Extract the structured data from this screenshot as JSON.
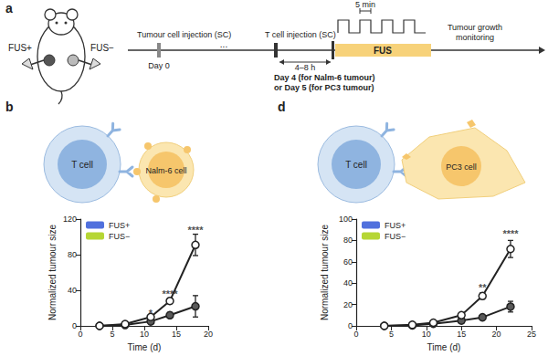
{
  "figure": {
    "panel_labels": [
      "a",
      "b",
      "d"
    ],
    "schematic": {
      "mouse_labels": [
        "FUS+",
        "FUS−"
      ],
      "tumour_injection": {
        "label": "Tumour cell injection (SC)",
        "day": "Day 0"
      },
      "ellipsis": "...",
      "t_cell_injection": {
        "label": "T cell injection (SC)",
        "day": [
          "Day 4 (for Nalm-6 tumour)",
          "or Day 5 (for PC3 tumour)"
        ]
      },
      "delay": "4–8 h",
      "pulse": "5 min",
      "fus": "FUS",
      "monitoring": [
        "Tumour growth",
        "monitoring"
      ]
    },
    "cells": [
      {
        "panel": "b",
        "labels": [
          "T cell",
          "Nalm-6 cell"
        ]
      },
      {
        "panel": "d",
        "labels": [
          "T cell",
          "PC3 cell"
        ]
      }
    ]
  },
  "chart_data": [
    {
      "type": "line",
      "panel": "b",
      "x": [
        3,
        7,
        11,
        14,
        18
      ],
      "xlim": [
        0,
        20
      ],
      "xticks": [
        0,
        5,
        10,
        15,
        20
      ],
      "ylim": [
        0,
        120
      ],
      "yticks": [
        0,
        40,
        80,
        120
      ],
      "x_label": "Time (d)",
      "y_label": "Normalized tumour size",
      "grid": false,
      "legend": "upper left",
      "marker": "circle",
      "series": [
        {
          "name": "FUS+",
          "color": "#595959",
          "values": [
            0,
            1,
            5,
            12,
            22
          ],
          "errors": [
            0,
            0.5,
            1,
            3,
            12
          ]
        },
        {
          "name": "FUS−",
          "color": "#ffffff",
          "values": [
            0,
            2,
            10,
            28,
            91
          ],
          "errors": [
            0,
            1,
            2,
            3,
            12
          ]
        }
      ],
      "annotations": [
        {
          "text": "*",
          "x": 11,
          "y": 14
        },
        {
          "text": "****",
          "x": 14,
          "y": 36
        },
        {
          "text": "****",
          "x": 18,
          "y": 108
        }
      ]
    },
    {
      "type": "line",
      "panel": "d",
      "x": [
        4,
        8,
        11,
        15,
        18,
        22
      ],
      "xlim": [
        0,
        25
      ],
      "xticks": [
        0,
        5,
        10,
        15,
        20,
        25
      ],
      "ylim": [
        0,
        100
      ],
      "yticks": [
        0,
        20,
        40,
        60,
        80,
        100
      ],
      "x_label": "Time (d)",
      "y_label": "Normalized tumour size",
      "grid": false,
      "legend": "upper left",
      "marker": "circle",
      "series": [
        {
          "name": "FUS+",
          "color": "#595959",
          "values": [
            0,
            0.5,
            2,
            5,
            8,
            18
          ],
          "errors": [
            0,
            0.3,
            0.5,
            1,
            2,
            5
          ]
        },
        {
          "name": "FUS−",
          "color": "#ffffff",
          "values": [
            0,
            1,
            3,
            10,
            28,
            72
          ],
          "errors": [
            0,
            0.5,
            1,
            2,
            3,
            8
          ]
        }
      ],
      "annotations": [
        {
          "text": "**",
          "x": 18,
          "y": 36
        },
        {
          "text": "****",
          "x": 22,
          "y": 86
        }
      ]
    }
  ]
}
